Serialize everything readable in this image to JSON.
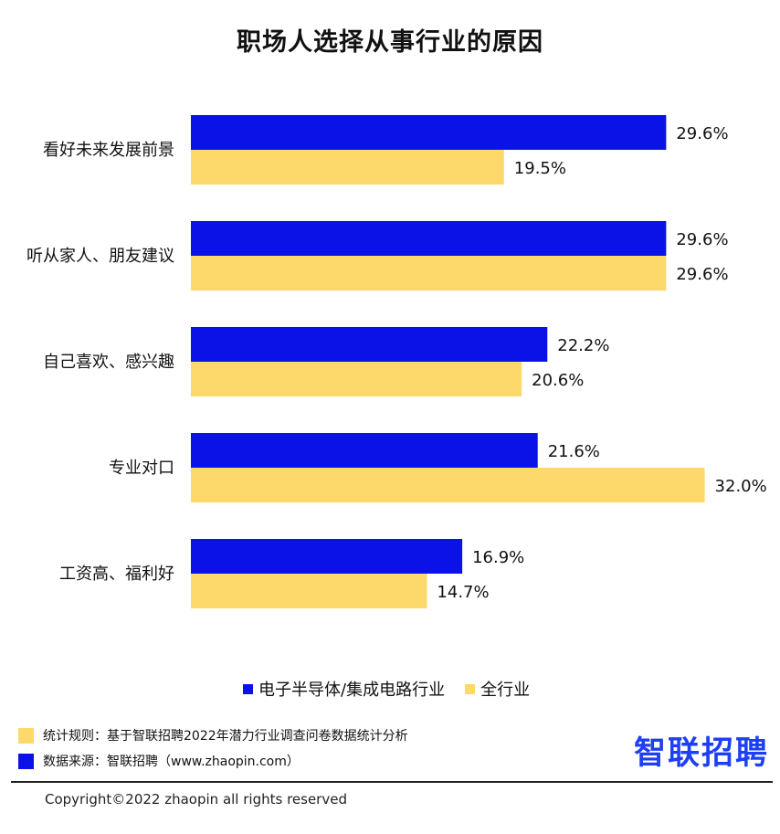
{
  "title": "职场人选择从事行业的原因",
  "colors": {
    "series1": "#0A12E8",
    "series2": "#FDD86A",
    "brand": "#1E3FF5"
  },
  "chart_data": {
    "type": "bar",
    "orientation": "horizontal",
    "categories": [
      "看好未来发展前景",
      "听从家人、朋友建议",
      "自己喜欢、感兴趣",
      "专业对口",
      "工资高、福利好"
    ],
    "series": [
      {
        "name": "电子半导体/集成电路行业",
        "values": [
          29.6,
          29.6,
          22.2,
          21.6,
          16.9
        ]
      },
      {
        "name": "全行业",
        "values": [
          19.5,
          29.6,
          20.6,
          32.0,
          14.7
        ]
      }
    ],
    "value_labels": [
      [
        "29.6%",
        "29.6%",
        "22.2%",
        "21.6%",
        "16.9%"
      ],
      [
        "19.5%",
        "29.6%",
        "20.6%",
        "32.0%",
        "14.7%"
      ]
    ],
    "unit": "%",
    "legend_position": "bottom",
    "grid": false
  },
  "legend": {
    "s1": "电子半导体/集成电路行业",
    "s2": "全行业"
  },
  "notes": {
    "rule": "统计规则：基于智联招聘2022年潜力行业调查问卷数据统计分析",
    "source": "数据来源：智联招聘（www.zhaopin.com）"
  },
  "brand": "智联招聘",
  "copyright": "Copyright©2022 zhaopin all rights reserved"
}
